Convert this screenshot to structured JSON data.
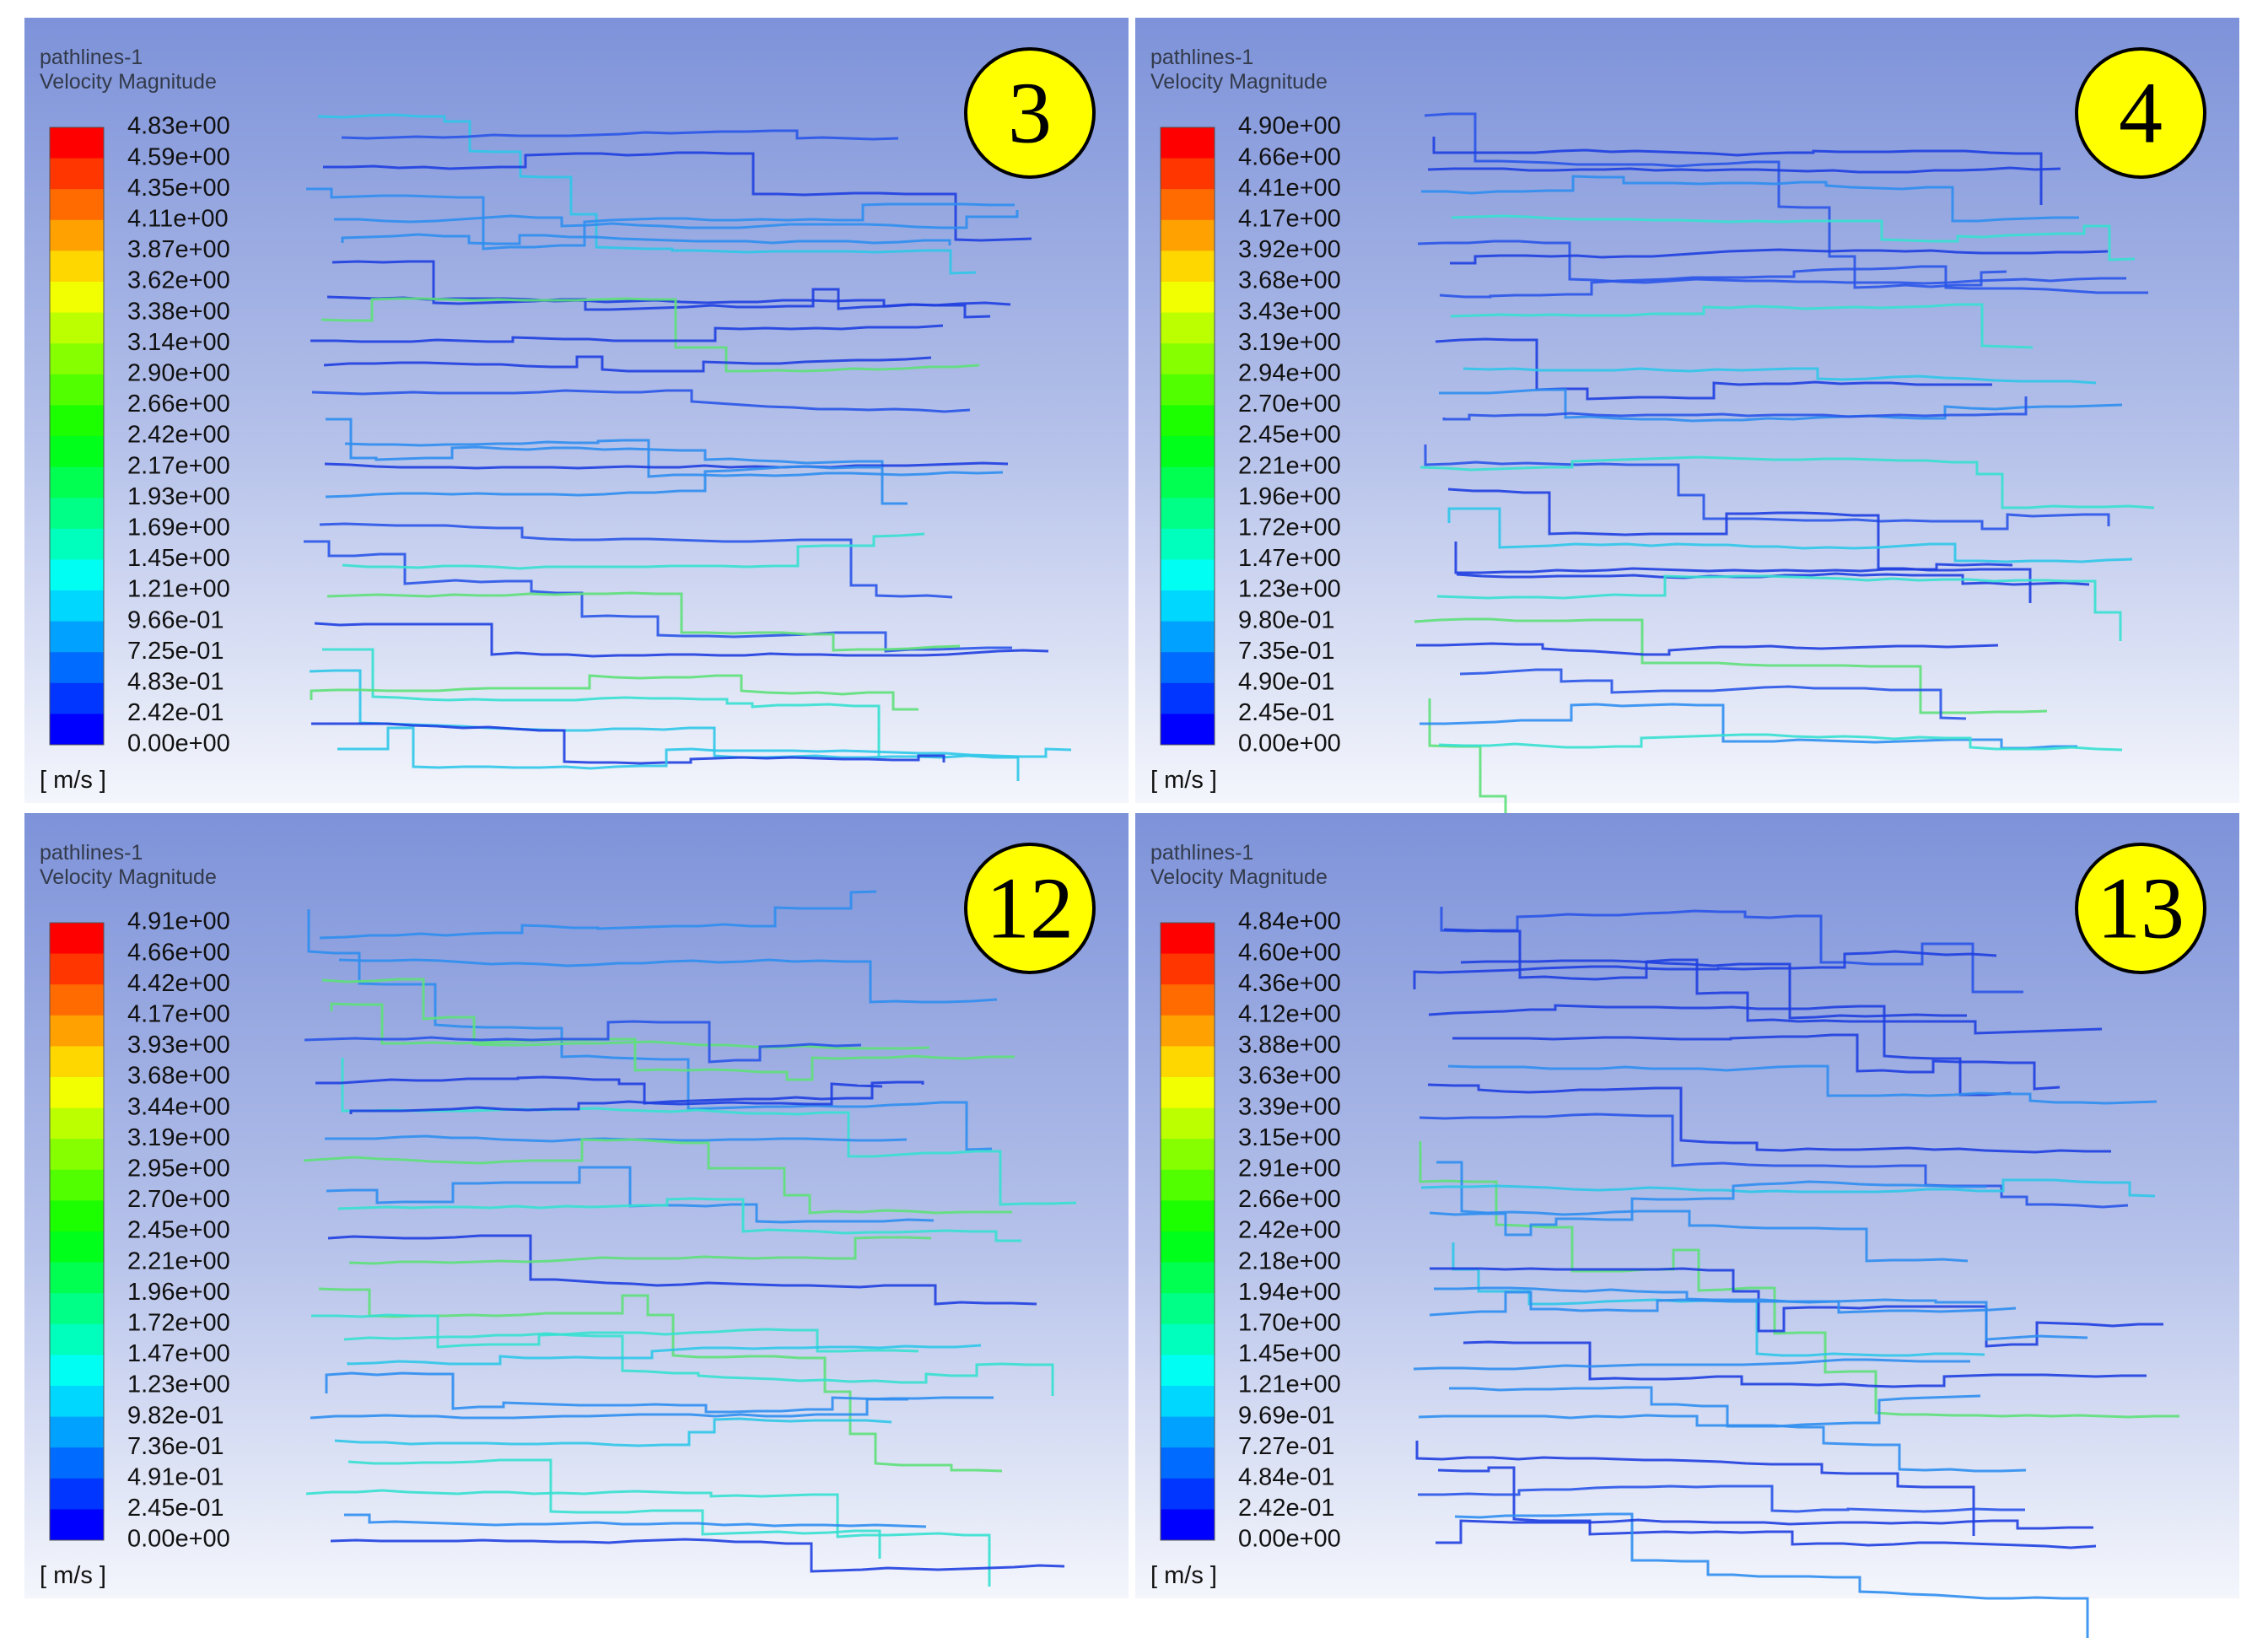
{
  "panels": [
    {
      "badge": "3",
      "title": "pathlines-1",
      "subtitle": "Velocity Magnitude",
      "unit": "[ m/s ]",
      "legend_labels": [
        "4.83e+00",
        "4.59e+00",
        "4.35e+00",
        "4.11e+00",
        "3.87e+00",
        "3.62e+00",
        "3.38e+00",
        "3.14e+00",
        "2.90e+00",
        "2.66e+00",
        "2.42e+00",
        "2.17e+00",
        "1.93e+00",
        "1.69e+00",
        "1.45e+00",
        "1.21e+00",
        "9.66e-01",
        "7.25e-01",
        "4.83e-01",
        "2.42e-01",
        "0.00e+00"
      ]
    },
    {
      "badge": "4",
      "title": "pathlines-1",
      "subtitle": "Velocity Magnitude",
      "unit": "[ m/s ]",
      "legend_labels": [
        "4.90e+00",
        "4.66e+00",
        "4.41e+00",
        "4.17e+00",
        "3.92e+00",
        "3.68e+00",
        "3.43e+00",
        "3.19e+00",
        "2.94e+00",
        "2.70e+00",
        "2.45e+00",
        "2.21e+00",
        "1.96e+00",
        "1.72e+00",
        "1.47e+00",
        "1.23e+00",
        "9.80e-01",
        "7.35e-01",
        "4.90e-01",
        "2.45e-01",
        "0.00e+00"
      ]
    },
    {
      "badge": "12",
      "title": "pathlines-1",
      "subtitle": "Velocity Magnitude",
      "unit": "[ m/s ]",
      "legend_labels": [
        "4.91e+00",
        "4.66e+00",
        "4.42e+00",
        "4.17e+00",
        "3.93e+00",
        "3.68e+00",
        "3.44e+00",
        "3.19e+00",
        "2.95e+00",
        "2.70e+00",
        "2.45e+00",
        "2.21e+00",
        "1.96e+00",
        "1.72e+00",
        "1.47e+00",
        "1.23e+00",
        "9.82e-01",
        "7.36e-01",
        "4.91e-01",
        "2.45e-01",
        "0.00e+00"
      ]
    },
    {
      "badge": "13",
      "title": "pathlines-1",
      "subtitle": "Velocity Magnitude",
      "unit": "[ m/s ]",
      "legend_labels": [
        "4.84e+00",
        "4.60e+00",
        "4.36e+00",
        "4.12e+00",
        "3.88e+00",
        "3.63e+00",
        "3.39e+00",
        "3.15e+00",
        "2.91e+00",
        "2.66e+00",
        "2.42e+00",
        "2.18e+00",
        "1.94e+00",
        "1.70e+00",
        "1.45e+00",
        "1.21e+00",
        "9.69e-01",
        "7.27e-01",
        "4.84e-01",
        "2.42e-01",
        "0.00e+00"
      ]
    }
  ]
}
